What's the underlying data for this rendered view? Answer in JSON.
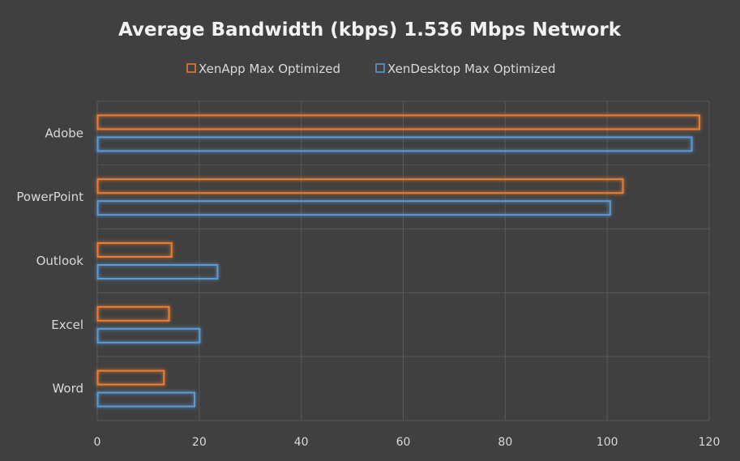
{
  "chart_data": {
    "type": "bar",
    "orientation": "horizontal",
    "title": "Average Bandwidth (kbps) 1.536 Mbps Network",
    "categories": [
      "Adobe",
      "PowerPoint",
      "Outlook",
      "Excel",
      "Word"
    ],
    "series": [
      {
        "name": "XenApp Max Optimized",
        "color": "#ed7d31",
        "values": [
          118,
          103,
          14.5,
          14,
          13
        ]
      },
      {
        "name": "XenDesktop Max Optimized",
        "color": "#5b9bd5",
        "values": [
          116.5,
          100.5,
          23.5,
          20,
          19
        ]
      }
    ],
    "xlim": [
      0,
      120
    ],
    "xticks": [
      0,
      20,
      40,
      60,
      80,
      100,
      120
    ],
    "xlabel": "",
    "ylabel": "",
    "grid": true,
    "legend_position": "top"
  },
  "colors": {
    "background": "#404040",
    "gridline": "#595959",
    "text": "#d9d9d9"
  }
}
